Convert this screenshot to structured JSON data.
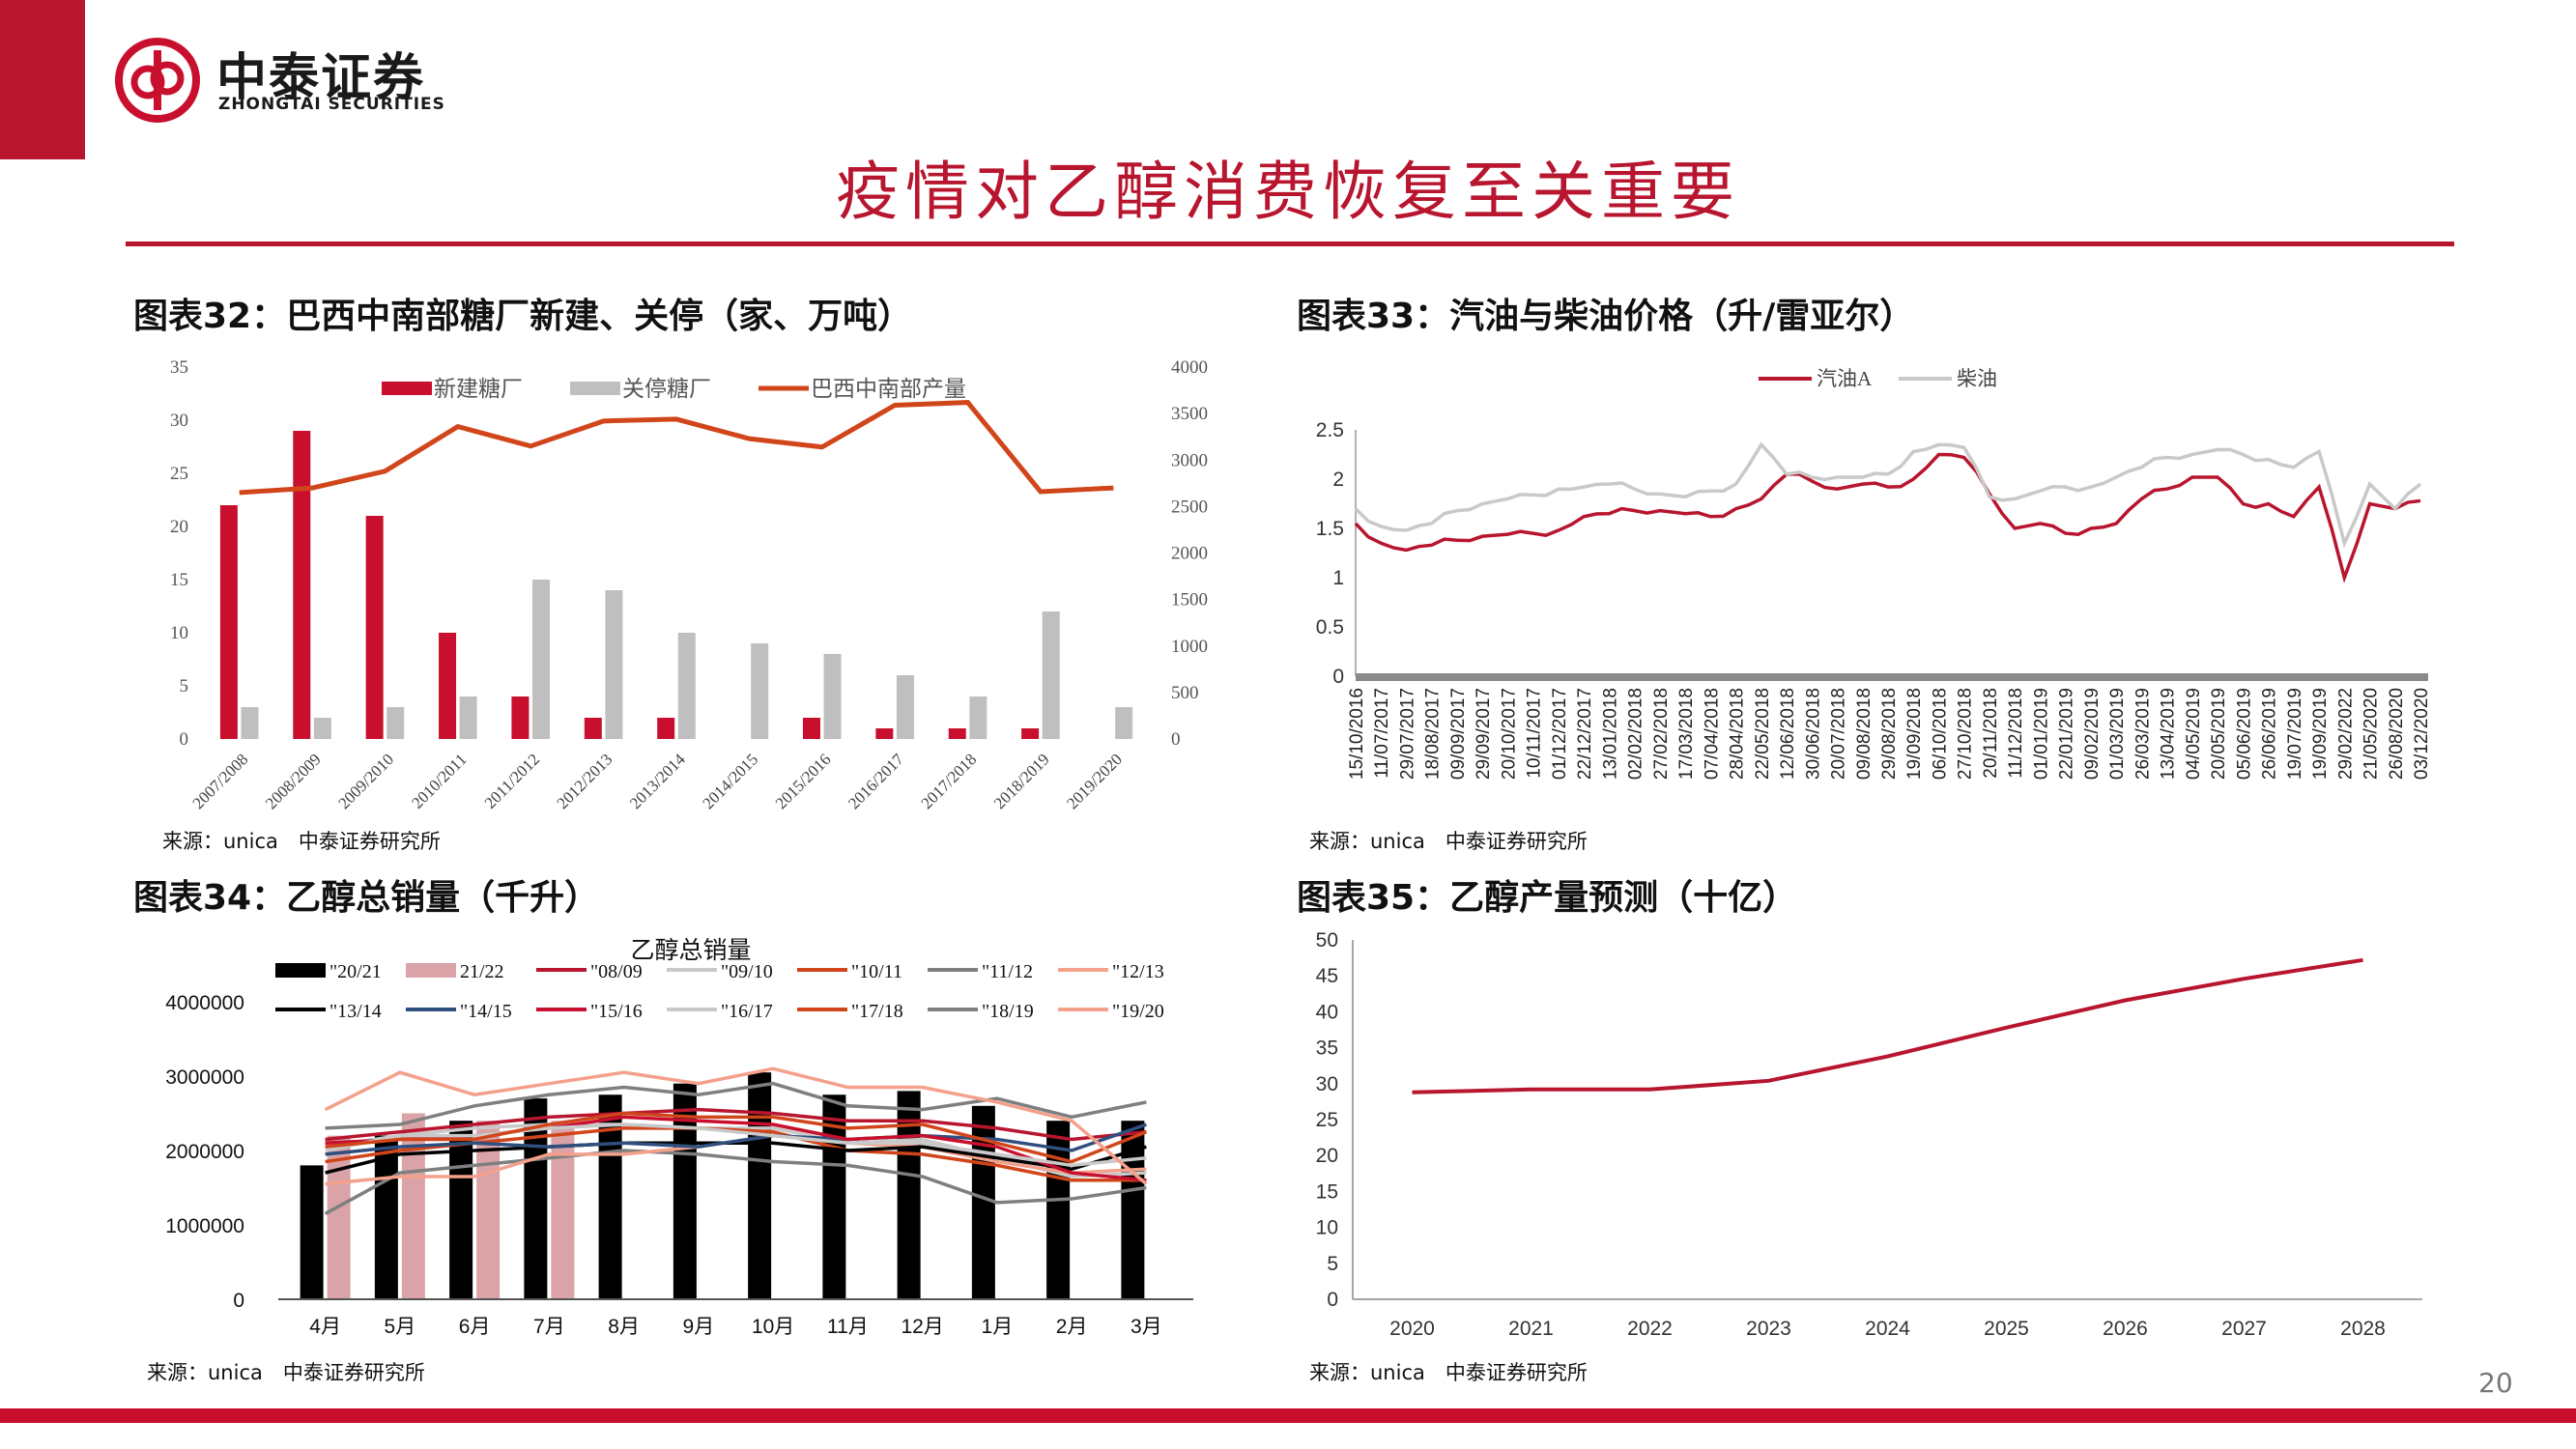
{
  "brand": {
    "name_cn": "中泰证券",
    "name_en": "ZHONGTAI SECURITIES"
  },
  "page_title": "疫情对乙醇消费恢复至关重要",
  "page_number": "20",
  "colors": {
    "brand_red": "#b8152f",
    "gray": "#bfbfbf",
    "orange": "#d1451b"
  },
  "charts": {
    "c32": {
      "title": "图表32：巴西中南部糖厂新建、关停（家、万吨）",
      "source": "来源：unica　中泰证券研究所"
    },
    "c33": {
      "title": "图表33：汽油与柴油价格（升/雷亚尔）",
      "source": "来源：unica　中泰证券研究所"
    },
    "c34": {
      "title": "图表34：乙醇总销量（千升）",
      "source": "来源：unica　中泰证券研究所"
    },
    "c35": {
      "title": "图表35：乙醇产量预测（十亿）",
      "source": "来源：unica　中泰证券研究所"
    }
  },
  "chart_data": [
    {
      "id": "c32",
      "type": "bar",
      "categories": [
        "2007/2008",
        "2008/2009",
        "2009/2010",
        "2010/2011",
        "2011/2012",
        "2012/2013",
        "2013/2014",
        "2014/2015",
        "2015/2016",
        "2016/2017",
        "2017/2018",
        "2018/2019",
        "2019/2020"
      ],
      "series": [
        {
          "name": "新建糖厂",
          "type": "bar",
          "axis": "left",
          "color": "#c8102e",
          "values": [
            22,
            29,
            21,
            10,
            4,
            2,
            2,
            0,
            2,
            1,
            1,
            1,
            0
          ]
        },
        {
          "name": "关停糖厂",
          "type": "bar",
          "axis": "left",
          "color": "#bfbfbf",
          "values": [
            3,
            2,
            3,
            4,
            15,
            14,
            10,
            9,
            8,
            6,
            4,
            12,
            3
          ]
        },
        {
          "name": "巴西中南部产量",
          "type": "line",
          "axis": "right",
          "color": "#d1451b",
          "values": [
            2650,
            2700,
            2880,
            3360,
            3150,
            3420,
            3440,
            3230,
            3140,
            3590,
            3620,
            2660,
            2700
          ]
        }
      ],
      "y_left": {
        "ticks": [
          0,
          5,
          10,
          15,
          20,
          25,
          30,
          35
        ],
        "lim": [
          0,
          35
        ]
      },
      "y_right": {
        "ticks": [
          0,
          500,
          1000,
          1500,
          2000,
          2500,
          3000,
          3500,
          4000
        ],
        "lim": [
          0,
          4000
        ]
      },
      "legend": "top"
    },
    {
      "id": "c33",
      "type": "line",
      "x_ticks": [
        "15/10/2016",
        "11/07/2017",
        "29/07/2017",
        "18/08/2017",
        "09/09/2017",
        "29/09/2017",
        "20/10/2017",
        "10/11/2017",
        "01/12/2017",
        "22/12/2017",
        "13/01/2018",
        "02/02/2018",
        "27/02/2018",
        "17/03/2018",
        "07/04/2018",
        "28/04/2018",
        "22/05/2018",
        "12/06/2018",
        "30/06/2018",
        "20/07/2018",
        "09/08/2018",
        "29/08/2018",
        "19/09/2018",
        "06/10/2018",
        "27/10/2018",
        "20/11/2018",
        "11/12/2018",
        "01/01/2019",
        "22/01/2019",
        "09/02/2019",
        "01/03/2019",
        "26/03/2019",
        "13/04/2019",
        "04/05/2019",
        "20/05/2019",
        "05/06/2019",
        "26/06/2019",
        "19/07/2019",
        "19/09/2019",
        "29/02/2022",
        "21/05/2020",
        "26/08/2020",
        "03/12/2020"
      ],
      "y_ticks": [
        0,
        0.5,
        1,
        1.5,
        2,
        2.5
      ],
      "ylim": [
        0,
        2.5
      ],
      "series": [
        {
          "name": "汽油A",
          "color": "#b8152f",
          "values": [
            1.55,
            1.35,
            1.28,
            1.33,
            1.38,
            1.42,
            1.44,
            1.45,
            1.48,
            1.62,
            1.65,
            1.68,
            1.68,
            1.65,
            1.62,
            1.7,
            1.8,
            2.05,
            1.98,
            1.9,
            1.95,
            1.92,
            2.0,
            2.25,
            2.22,
            1.85,
            1.5,
            1.55,
            1.45,
            1.5,
            1.55,
            1.8,
            1.9,
            2.02,
            2.02,
            1.75,
            1.75,
            1.62,
            1.92,
            1.0,
            1.75,
            1.7,
            1.78
          ]
        },
        {
          "name": "柴油",
          "color": "#c9c9c9",
          "values": [
            1.7,
            1.52,
            1.48,
            1.55,
            1.68,
            1.75,
            1.8,
            1.84,
            1.9,
            1.92,
            1.95,
            1.9,
            1.85,
            1.82,
            1.88,
            1.95,
            2.35,
            2.05,
            2.02,
            2.02,
            2.02,
            2.05,
            2.28,
            2.35,
            2.32,
            1.82,
            1.8,
            1.88,
            1.92,
            1.92,
            2.02,
            2.12,
            2.22,
            2.25,
            2.3,
            2.25,
            2.2,
            2.12,
            2.28,
            1.35,
            1.95,
            1.7,
            1.95
          ]
        }
      ],
      "legend": "top"
    },
    {
      "id": "c34",
      "type": "bar",
      "title": "乙醇总销量",
      "categories": [
        "4月",
        "5月",
        "6月",
        "7月",
        "8月",
        "9月",
        "10月",
        "11月",
        "12月",
        "1月",
        "2月",
        "3月"
      ],
      "y_ticks": [
        0,
        1000000,
        2000000,
        3000000,
        4000000
      ],
      "ylim": [
        0,
        4000000
      ],
      "series": [
        {
          "name": "\"20/21",
          "type": "bar",
          "color": "#000000",
          "values": [
            1800000,
            2200000,
            2400000,
            2700000,
            2750000,
            2900000,
            3050000,
            2750000,
            2800000,
            2600000,
            2400000,
            2400000
          ]
        },
        {
          "name": "21/22",
          "type": "bar",
          "color": "#d9a3a8",
          "values": [
            2200000,
            2500000,
            2400000,
            2400000,
            null,
            null,
            null,
            null,
            null,
            null,
            null,
            null
          ]
        },
        {
          "name": "\"08/09",
          "type": "line",
          "color": "#b8152f",
          "values": [
            2150000,
            2250000,
            2350000,
            2450000,
            2500000,
            2550000,
            2500000,
            2400000,
            2400000,
            2300000,
            2150000,
            2250000
          ]
        },
        {
          "name": "\"09/10",
          "type": "line",
          "color": "#c9c9c9",
          "values": [
            2050000,
            2200000,
            2300000,
            2350000,
            2350000,
            2300000,
            2300000,
            2100000,
            2150000,
            1900000,
            1650000,
            1700000
          ]
        },
        {
          "name": "\"10/11",
          "type": "line",
          "color": "#d1451b",
          "values": [
            1850000,
            2000000,
            2100000,
            2200000,
            2300000,
            2300000,
            2250000,
            2000000,
            1950000,
            1800000,
            1600000,
            1600000
          ]
        },
        {
          "name": "\"11/12",
          "type": "line",
          "color": "#7f7f7f",
          "values": [
            1150000,
            1700000,
            1800000,
            1900000,
            2000000,
            1950000,
            1850000,
            1800000,
            1650000,
            1300000,
            1350000,
            1500000
          ]
        },
        {
          "name": "\"12/13",
          "type": "line",
          "color": "#f4a08a",
          "values": [
            1550000,
            1650000,
            1650000,
            1950000,
            1950000,
            2050000,
            2200000,
            2100000,
            2050000,
            1850000,
            1700000,
            1750000
          ]
        },
        {
          "name": "\"13/14",
          "type": "line",
          "color": "#000000",
          "values": [
            1700000,
            1950000,
            2000000,
            2050000,
            2100000,
            2100000,
            2100000,
            2000000,
            2050000,
            1900000,
            1750000,
            2050000
          ]
        },
        {
          "name": "\"14/15",
          "type": "line",
          "color": "#2f4f7f",
          "values": [
            1950000,
            2050000,
            2100000,
            2050000,
            2100000,
            2050000,
            2200000,
            2150000,
            2200000,
            2150000,
            2000000,
            2350000
          ]
        },
        {
          "name": "\"15/16",
          "type": "line",
          "color": "#c8102e",
          "values": [
            2100000,
            2150000,
            2200000,
            2300000,
            2450000,
            2400000,
            2350000,
            2150000,
            2200000,
            2050000,
            1700000,
            1600000
          ]
        },
        {
          "name": "\"16/17",
          "type": "line",
          "color": "#c9c9c9",
          "values": [
            2000000,
            2200000,
            2200000,
            2300000,
            2350000,
            2300000,
            2200000,
            2100000,
            2100000,
            1950000,
            1800000,
            1900000
          ]
        },
        {
          "name": "\"17/18",
          "type": "line",
          "color": "#d1451b",
          "values": [
            2050000,
            2150000,
            2150000,
            2350000,
            2500000,
            2450000,
            2450000,
            2300000,
            2350000,
            2100000,
            1850000,
            2250000
          ]
        },
        {
          "name": "\"18/19",
          "type": "line",
          "color": "#7f7f7f",
          "values": [
            2300000,
            2350000,
            2600000,
            2750000,
            2850000,
            2750000,
            2900000,
            2600000,
            2550000,
            2700000,
            2450000,
            2650000
          ]
        },
        {
          "name": "\"19/20",
          "type": "line",
          "color": "#f4a08a",
          "values": [
            2550000,
            3050000,
            2750000,
            2900000,
            3050000,
            2900000,
            3100000,
            2850000,
            2850000,
            2650000,
            2400000,
            1550000
          ]
        }
      ],
      "legend": "top"
    },
    {
      "id": "c35",
      "type": "line",
      "x": [
        "2020",
        "2021",
        "2022",
        "2023",
        "2024",
        "2025",
        "2026",
        "2027",
        "2028"
      ],
      "y_ticks": [
        0,
        5,
        10,
        15,
        20,
        25,
        30,
        35,
        40,
        45,
        50
      ],
      "ylim": [
        0,
        50
      ],
      "series": [
        {
          "name": "",
          "color": "#b8152f",
          "values": [
            28.8,
            29.2,
            29.2,
            30.4,
            33.8,
            37.8,
            41.6,
            44.6,
            47.2
          ]
        }
      ]
    }
  ]
}
